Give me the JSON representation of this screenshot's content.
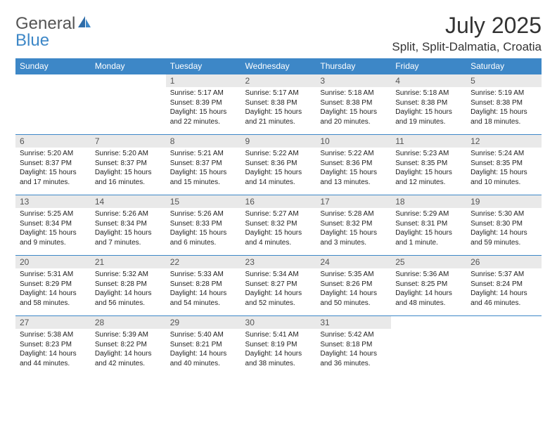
{
  "brand": {
    "part1": "General",
    "part2": "Blue"
  },
  "title": "July 2025",
  "location": "Split, Split-Dalmatia, Croatia",
  "colors": {
    "header_bg": "#3d87c7",
    "header_text": "#ffffff",
    "daynum_bg": "#e9e9e9",
    "border": "#3d87c7",
    "body_text": "#222222",
    "title_text": "#333333"
  },
  "dayHeaders": [
    "Sunday",
    "Monday",
    "Tuesday",
    "Wednesday",
    "Thursday",
    "Friday",
    "Saturday"
  ],
  "weeks": [
    [
      null,
      null,
      {
        "n": "1",
        "sr": "5:17 AM",
        "ss": "8:39 PM",
        "dl": "15 hours and 22 minutes."
      },
      {
        "n": "2",
        "sr": "5:17 AM",
        "ss": "8:38 PM",
        "dl": "15 hours and 21 minutes."
      },
      {
        "n": "3",
        "sr": "5:18 AM",
        "ss": "8:38 PM",
        "dl": "15 hours and 20 minutes."
      },
      {
        "n": "4",
        "sr": "5:18 AM",
        "ss": "8:38 PM",
        "dl": "15 hours and 19 minutes."
      },
      {
        "n": "5",
        "sr": "5:19 AM",
        "ss": "8:38 PM",
        "dl": "15 hours and 18 minutes."
      }
    ],
    [
      {
        "n": "6",
        "sr": "5:20 AM",
        "ss": "8:37 PM",
        "dl": "15 hours and 17 minutes."
      },
      {
        "n": "7",
        "sr": "5:20 AM",
        "ss": "8:37 PM",
        "dl": "15 hours and 16 minutes."
      },
      {
        "n": "8",
        "sr": "5:21 AM",
        "ss": "8:37 PM",
        "dl": "15 hours and 15 minutes."
      },
      {
        "n": "9",
        "sr": "5:22 AM",
        "ss": "8:36 PM",
        "dl": "15 hours and 14 minutes."
      },
      {
        "n": "10",
        "sr": "5:22 AM",
        "ss": "8:36 PM",
        "dl": "15 hours and 13 minutes."
      },
      {
        "n": "11",
        "sr": "5:23 AM",
        "ss": "8:35 PM",
        "dl": "15 hours and 12 minutes."
      },
      {
        "n": "12",
        "sr": "5:24 AM",
        "ss": "8:35 PM",
        "dl": "15 hours and 10 minutes."
      }
    ],
    [
      {
        "n": "13",
        "sr": "5:25 AM",
        "ss": "8:34 PM",
        "dl": "15 hours and 9 minutes."
      },
      {
        "n": "14",
        "sr": "5:26 AM",
        "ss": "8:34 PM",
        "dl": "15 hours and 7 minutes."
      },
      {
        "n": "15",
        "sr": "5:26 AM",
        "ss": "8:33 PM",
        "dl": "15 hours and 6 minutes."
      },
      {
        "n": "16",
        "sr": "5:27 AM",
        "ss": "8:32 PM",
        "dl": "15 hours and 4 minutes."
      },
      {
        "n": "17",
        "sr": "5:28 AM",
        "ss": "8:32 PM",
        "dl": "15 hours and 3 minutes."
      },
      {
        "n": "18",
        "sr": "5:29 AM",
        "ss": "8:31 PM",
        "dl": "15 hours and 1 minute."
      },
      {
        "n": "19",
        "sr": "5:30 AM",
        "ss": "8:30 PM",
        "dl": "14 hours and 59 minutes."
      }
    ],
    [
      {
        "n": "20",
        "sr": "5:31 AM",
        "ss": "8:29 PM",
        "dl": "14 hours and 58 minutes."
      },
      {
        "n": "21",
        "sr": "5:32 AM",
        "ss": "8:28 PM",
        "dl": "14 hours and 56 minutes."
      },
      {
        "n": "22",
        "sr": "5:33 AM",
        "ss": "8:28 PM",
        "dl": "14 hours and 54 minutes."
      },
      {
        "n": "23",
        "sr": "5:34 AM",
        "ss": "8:27 PM",
        "dl": "14 hours and 52 minutes."
      },
      {
        "n": "24",
        "sr": "5:35 AM",
        "ss": "8:26 PM",
        "dl": "14 hours and 50 minutes."
      },
      {
        "n": "25",
        "sr": "5:36 AM",
        "ss": "8:25 PM",
        "dl": "14 hours and 48 minutes."
      },
      {
        "n": "26",
        "sr": "5:37 AM",
        "ss": "8:24 PM",
        "dl": "14 hours and 46 minutes."
      }
    ],
    [
      {
        "n": "27",
        "sr": "5:38 AM",
        "ss": "8:23 PM",
        "dl": "14 hours and 44 minutes."
      },
      {
        "n": "28",
        "sr": "5:39 AM",
        "ss": "8:22 PM",
        "dl": "14 hours and 42 minutes."
      },
      {
        "n": "29",
        "sr": "5:40 AM",
        "ss": "8:21 PM",
        "dl": "14 hours and 40 minutes."
      },
      {
        "n": "30",
        "sr": "5:41 AM",
        "ss": "8:19 PM",
        "dl": "14 hours and 38 minutes."
      },
      {
        "n": "31",
        "sr": "5:42 AM",
        "ss": "8:18 PM",
        "dl": "14 hours and 36 minutes."
      },
      null,
      null
    ]
  ],
  "labels": {
    "sunrise": "Sunrise:",
    "sunset": "Sunset:",
    "daylight": "Daylight:"
  }
}
